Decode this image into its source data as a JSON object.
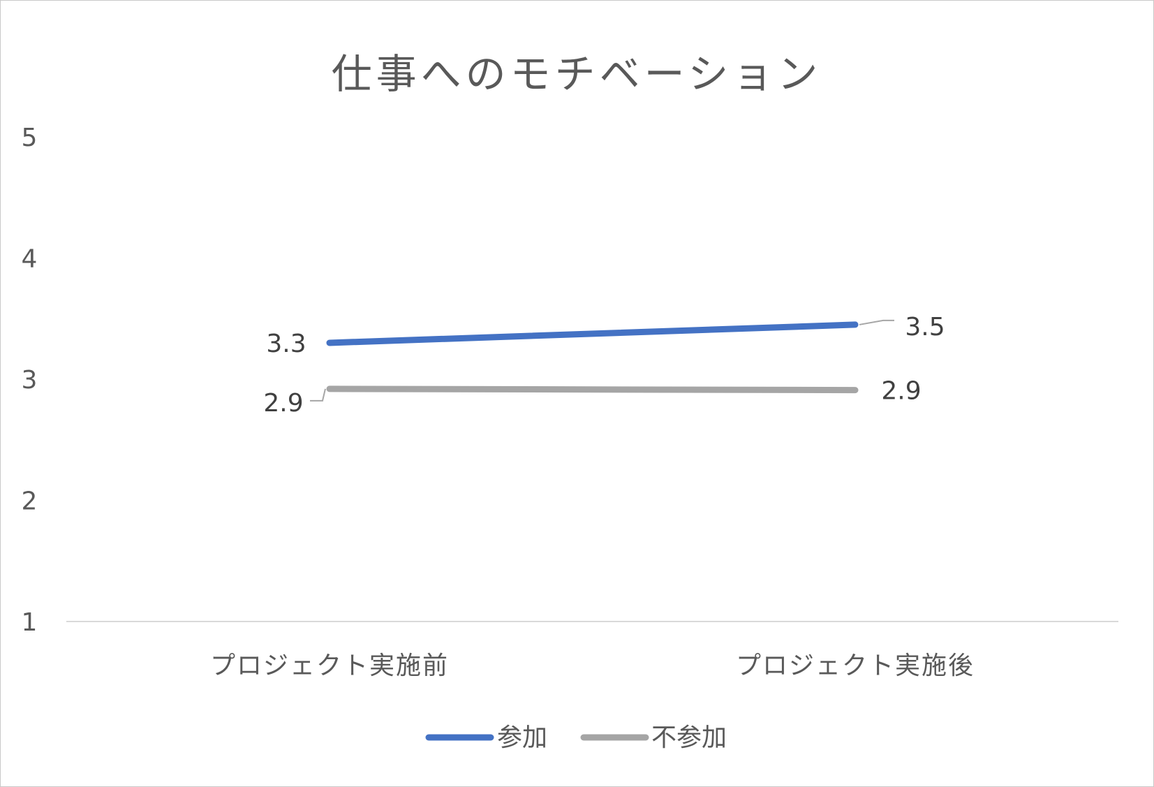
{
  "chart_data": {
    "type": "line",
    "title": "仕事へのモチベーション",
    "categories": [
      "プロジェクト実施前",
      "プロジェクト実施後"
    ],
    "series": [
      {
        "name": "参加",
        "values": [
          3.3,
          3.45
        ],
        "labels": [
          "3.3",
          "3.5"
        ],
        "color": "#4472C4"
      },
      {
        "name": "不参加",
        "values": [
          2.92,
          2.91
        ],
        "labels": [
          "2.9",
          "2.9"
        ],
        "color": "#A5A5A5"
      }
    ],
    "ylim": [
      1,
      5
    ],
    "yticks": [
      "1",
      "2",
      "3",
      "4",
      "5"
    ],
    "grid": false,
    "legend": "bottom",
    "axis_color": "#D9D9D9"
  }
}
